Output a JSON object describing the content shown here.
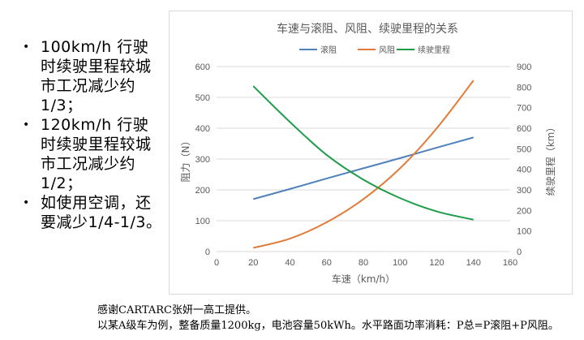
{
  "bullets": [
    "100km/h 行驶时续驶里程较城市工况减少约1/3；",
    "120km/h 行驶时续驶里程较城市工况减少约1/2；",
    "如使用空调，还要减少1/4-1/3。"
  ],
  "footer": {
    "line1": "感谢CARTARC张妍一高工提供。",
    "line2": "以某A级车为例，整备质量1200kg，电池容量50kWh。水平路面功率消耗：P总=P滚阻+P风阻。"
  },
  "chart_data": {
    "type": "line",
    "title": "车速与滚阻、风阻、续驶里程的关系",
    "xlabel": "车速（km/h）",
    "ylabel": "阻力（N）",
    "y2label": "续驶里程（km）",
    "xlim": [
      0,
      160
    ],
    "ylim": [
      0,
      600
    ],
    "y2lim": [
      0,
      900
    ],
    "xticks": [
      "0",
      "20",
      "40",
      "60",
      "80",
      "100",
      "120",
      "140",
      "160"
    ],
    "yticks": [
      "0",
      "100",
      "200",
      "300",
      "400",
      "500",
      "600"
    ],
    "y2ticks": [
      "0",
      "100",
      "200",
      "300",
      "400",
      "500",
      "600",
      "700",
      "800",
      "900"
    ],
    "grid": true,
    "legend_position": "top",
    "series": [
      {
        "name": "滚阻",
        "axis": "left",
        "color": "#4f81bd",
        "x": [
          20,
          40,
          60,
          80,
          100,
          120,
          140
        ],
        "y": [
          170,
          203,
          237,
          270,
          303,
          337,
          370
        ]
      },
      {
        "name": "风阻",
        "axis": "left",
        "color": "#e07b39",
        "x": [
          20,
          40,
          60,
          80,
          100,
          120,
          140
        ],
        "y": [
          12,
          42,
          95,
          170,
          270,
          400,
          555
        ]
      },
      {
        "name": "续驶里程",
        "axis": "right",
        "color": "#1e9c4a",
        "x": [
          20,
          40,
          60,
          80,
          100,
          120,
          140
        ],
        "y": [
          805,
          630,
          470,
          350,
          260,
          195,
          155
        ]
      }
    ]
  }
}
